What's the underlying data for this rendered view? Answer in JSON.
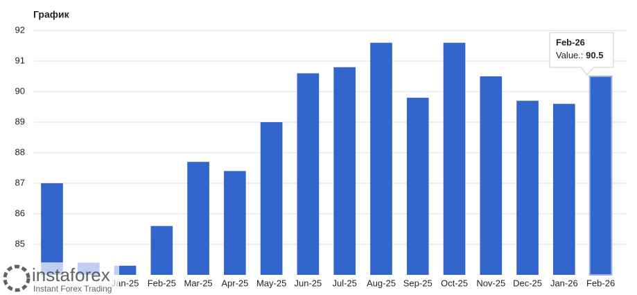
{
  "chart_data": {
    "type": "bar",
    "title": "График",
    "categories": [
      null,
      null,
      "Jan-25",
      "Feb-25",
      "Mar-25",
      "Apr-25",
      "May-25",
      "Jun-25",
      "Jul-25",
      "Aug-25",
      "Sep-25",
      "Oct-25",
      "Nov-25",
      "Dec-25",
      "Jan-26",
      "Feb-26"
    ],
    "values": [
      87.0,
      84.4,
      84.3,
      85.6,
      87.7,
      87.4,
      89.0,
      90.6,
      90.8,
      91.6,
      89.8,
      91.6,
      90.5,
      89.7,
      89.6,
      90.5
    ],
    "color": "#3366cc",
    "ylim": [
      84,
      92
    ],
    "yticks": [
      85,
      86,
      87,
      88,
      89,
      90,
      91,
      92
    ],
    "grid": true,
    "tooltip_label": "Value.:"
  },
  "watermark": {
    "brand": "instaforex",
    "tagline": "Instant Forex Trading"
  }
}
